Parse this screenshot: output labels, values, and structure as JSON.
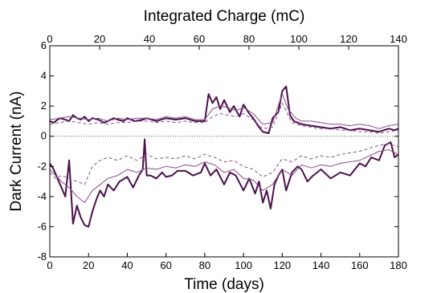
{
  "chart_data": {
    "type": "line",
    "title": "",
    "xlabel": "Time (days)",
    "x2label": "Integrated Charge (mC)",
    "ylabel": "Dark Current (nA)",
    "xlim": [
      0,
      180
    ],
    "x2lim": [
      0,
      140
    ],
    "ylim": [
      -8,
      6
    ],
    "xticks": [
      0,
      20,
      40,
      60,
      80,
      100,
      120,
      140,
      160,
      180
    ],
    "x2ticks": [
      0,
      20,
      40,
      60,
      80,
      100,
      120,
      140
    ],
    "yticks": [
      -8,
      -6,
      -4,
      -2,
      0,
      2,
      4,
      6
    ],
    "grid": false,
    "reference_line": {
      "y": 0,
      "style": "dotted"
    },
    "series": [
      {
        "color": "#4a0f4a",
        "width": 2.0,
        "dash": "none",
        "x": [
          0,
          2,
          5,
          8,
          10,
          12,
          14,
          16,
          18,
          20,
          22,
          25,
          28,
          30,
          33,
          35,
          38,
          40,
          44,
          48,
          50,
          55,
          60,
          65,
          70,
          75,
          80,
          82,
          84,
          86,
          88,
          90,
          93,
          95,
          98,
          100,
          103,
          105,
          108,
          110,
          113,
          115,
          118,
          120,
          122,
          124,
          126,
          128,
          130,
          135,
          140,
          145,
          150,
          155,
          160,
          165,
          170,
          175,
          178,
          180
        ],
        "y": [
          1.0,
          0.9,
          1.2,
          1.1,
          1.0,
          1.4,
          1.2,
          1.1,
          1.3,
          1.0,
          1.2,
          1.1,
          0.9,
          1.0,
          1.2,
          1.1,
          1.0,
          1.2,
          1.0,
          1.1,
          1.2,
          1.0,
          1.2,
          1.1,
          1.2,
          1.0,
          1.0,
          2.8,
          2.2,
          2.6,
          1.8,
          2.4,
          1.6,
          2.0,
          1.3,
          2.1,
          1.5,
          1.2,
          0.6,
          0.3,
          0.2,
          1.2,
          1.6,
          3.0,
          3.3,
          1.4,
          1.0,
          0.9,
          0.8,
          0.7,
          0.6,
          0.5,
          0.6,
          0.4,
          0.5,
          0.4,
          0.3,
          0.5,
          0.4,
          0.5
        ]
      },
      {
        "color": "#8a4a8a",
        "width": 1.0,
        "dash": "none",
        "x": [
          0,
          5,
          10,
          15,
          20,
          25,
          30,
          35,
          40,
          45,
          50,
          55,
          60,
          65,
          70,
          75,
          80,
          84,
          88,
          92,
          96,
          100,
          105,
          110,
          115,
          120,
          123,
          127,
          130,
          135,
          140,
          145,
          150,
          155,
          160,
          165,
          170,
          175,
          180
        ],
        "y": [
          1.1,
          1.2,
          1.3,
          1.2,
          1.1,
          1.2,
          1.0,
          1.2,
          1.1,
          1.2,
          1.2,
          1.1,
          1.3,
          1.2,
          1.3,
          1.1,
          1.1,
          1.8,
          2.0,
          1.9,
          1.7,
          1.9,
          1.5,
          0.8,
          0.9,
          2.8,
          1.8,
          1.2,
          1.0,
          1.0,
          0.9,
          0.8,
          0.8,
          0.7,
          0.8,
          0.7,
          0.5,
          0.7,
          0.8
        ]
      },
      {
        "color": "#8a4a8a",
        "width": 1.0,
        "dash": "4,3",
        "x": [
          0,
          5,
          10,
          15,
          20,
          25,
          30,
          35,
          40,
          45,
          50,
          55,
          60,
          65,
          70,
          75,
          80,
          84,
          88,
          92,
          96,
          100,
          105,
          110,
          115,
          120,
          125,
          130,
          135,
          140,
          145,
          150,
          155,
          160,
          165,
          170,
          175,
          180
        ],
        "y": [
          0.8,
          0.9,
          1.0,
          0.9,
          0.8,
          0.9,
          0.8,
          0.9,
          0.9,
          1.0,
          1.0,
          0.9,
          1.0,
          0.9,
          1.0,
          0.9,
          0.9,
          1.3,
          1.5,
          1.4,
          1.3,
          1.5,
          1.1,
          0.5,
          0.6,
          2.2,
          0.9,
          0.7,
          0.6,
          0.5,
          0.5,
          0.4,
          0.4,
          0.3,
          0.3,
          0.2,
          0.3,
          0.4
        ]
      },
      {
        "color": "#4a0f4a",
        "width": 2.0,
        "dash": "none",
        "x": [
          0,
          2,
          4,
          6,
          8,
          10,
          12,
          14,
          16,
          18,
          20,
          22,
          24,
          26,
          28,
          30,
          33,
          36,
          40,
          43,
          46,
          48,
          49,
          50,
          52,
          55,
          58,
          60,
          63,
          66,
          70,
          74,
          78,
          80,
          83,
          86,
          90,
          93,
          96,
          100,
          103,
          106,
          108,
          110,
          112,
          114,
          116,
          118,
          120,
          122,
          125,
          128,
          130,
          133,
          136,
          140,
          145,
          150,
          155,
          160,
          163,
          166,
          170,
          173,
          176,
          178,
          180
        ],
        "y": [
          -1.8,
          -2.2,
          -2.8,
          -3.4,
          -4.0,
          -1.6,
          -5.8,
          -4.6,
          -5.4,
          -5.9,
          -6.0,
          -5.0,
          -4.2,
          -3.6,
          -4.0,
          -3.2,
          -3.6,
          -3.0,
          -2.7,
          -3.4,
          -2.6,
          -2.2,
          -0.2,
          -2.6,
          -2.6,
          -2.8,
          -2.4,
          -2.7,
          -2.6,
          -2.3,
          -2.3,
          -2.6,
          -2.4,
          -1.8,
          -2.6,
          -2.2,
          -3.2,
          -2.4,
          -2.6,
          -3.6,
          -2.8,
          -3.8,
          -3.0,
          -4.4,
          -3.6,
          -4.8,
          -3.2,
          -2.6,
          -2.2,
          -3.6,
          -2.4,
          -2.0,
          -2.2,
          -3.0,
          -2.6,
          -2.2,
          -2.8,
          -2.4,
          -2.6,
          -1.8,
          -2.0,
          -1.4,
          -1.6,
          -0.6,
          -0.4,
          -1.4,
          -1.2
        ]
      },
      {
        "color": "#8a4a8a",
        "width": 1.0,
        "dash": "none",
        "x": [
          0,
          3,
          6,
          10,
          14,
          18,
          22,
          26,
          30,
          35,
          40,
          45,
          50,
          55,
          60,
          65,
          70,
          75,
          80,
          85,
          90,
          95,
          100,
          105,
          110,
          115,
          120,
          125,
          130,
          135,
          140,
          145,
          150,
          155,
          160,
          165,
          170,
          175,
          180
        ],
        "y": [
          -2.2,
          -2.6,
          -3.0,
          -3.4,
          -4.0,
          -4.4,
          -3.6,
          -3.2,
          -2.8,
          -2.6,
          -2.2,
          -2.4,
          -2.1,
          -2.2,
          -2.0,
          -2.1,
          -1.9,
          -2.0,
          -1.7,
          -1.9,
          -2.4,
          -2.2,
          -2.8,
          -2.9,
          -3.6,
          -3.2,
          -2.2,
          -2.6,
          -1.9,
          -2.1,
          -1.9,
          -2.0,
          -1.8,
          -1.7,
          -1.6,
          -1.3,
          -1.0,
          -0.9,
          -1.2
        ]
      },
      {
        "color": "#8a4a8a",
        "width": 1.0,
        "dash": "4,3",
        "x": [
          0,
          3,
          6,
          10,
          14,
          18,
          22,
          26,
          30,
          35,
          40,
          45,
          50,
          55,
          60,
          65,
          70,
          75,
          80,
          85,
          90,
          95,
          100,
          105,
          110,
          115,
          120,
          125,
          130,
          135,
          140,
          145,
          150,
          155,
          160,
          165,
          170,
          175,
          180
        ],
        "y": [
          -2.4,
          -2.8,
          -2.6,
          -2.8,
          -3.0,
          -3.2,
          -2.0,
          -1.6,
          -1.4,
          -1.6,
          -1.3,
          -1.6,
          -1.2,
          -1.5,
          -1.4,
          -1.5,
          -1.3,
          -1.5,
          -1.2,
          -1.4,
          -1.7,
          -1.6,
          -2.0,
          -2.2,
          -2.7,
          -2.4,
          -1.5,
          -1.7,
          -1.3,
          -1.5,
          -1.3,
          -1.4,
          -1.2,
          -1.1,
          -1.0,
          -0.8,
          -0.6,
          -0.5,
          -0.7
        ]
      }
    ]
  }
}
